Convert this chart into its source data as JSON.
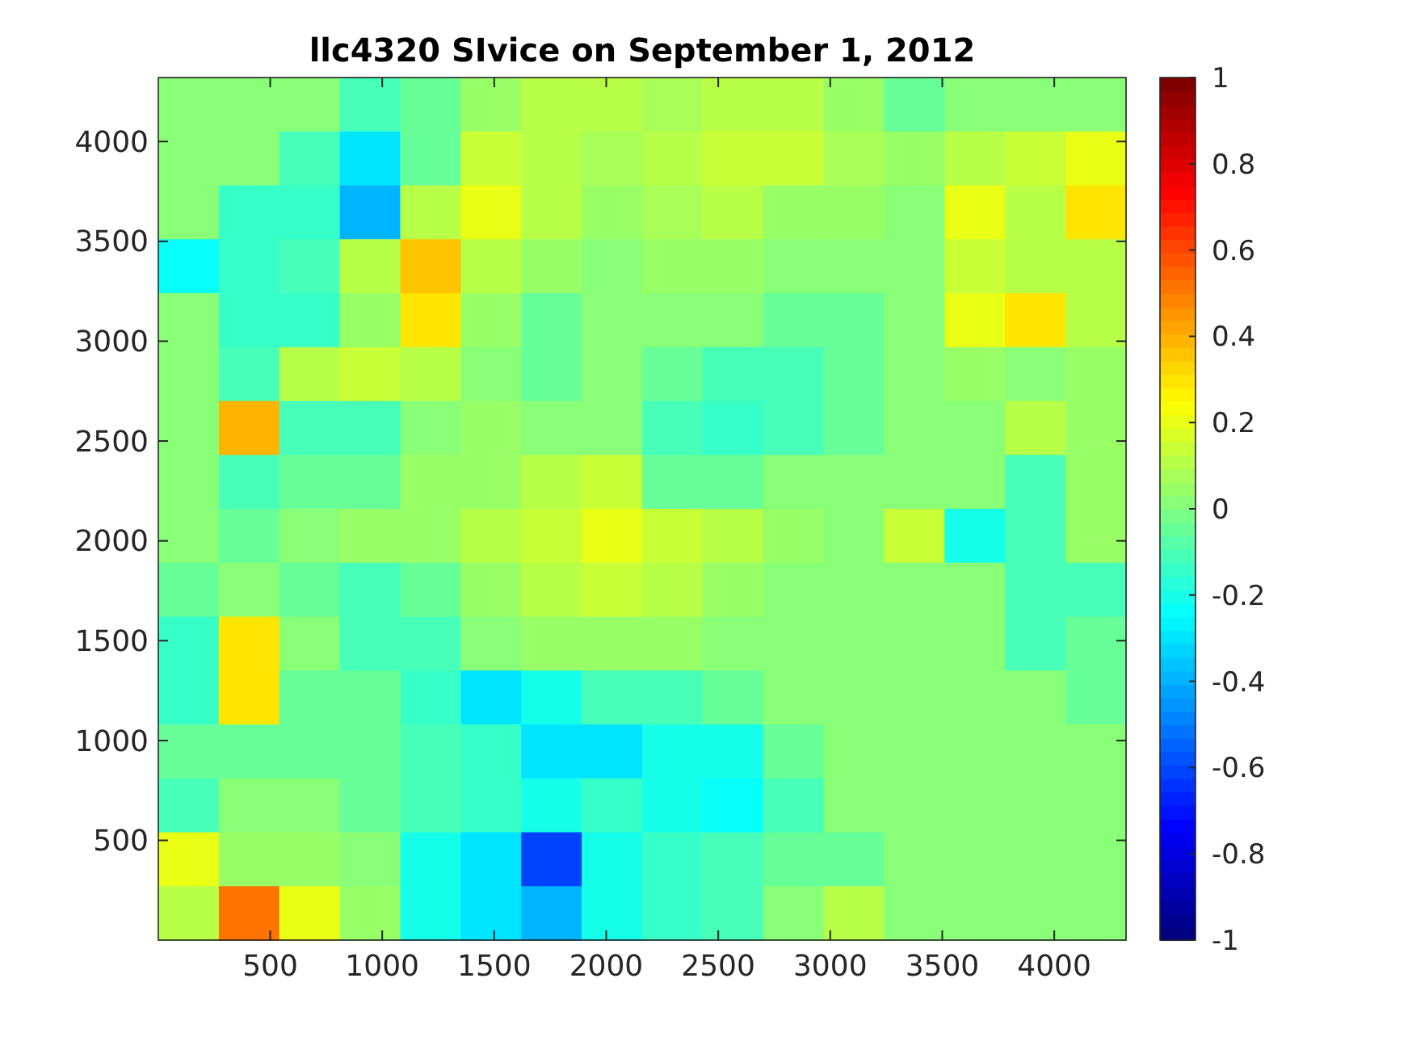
{
  "chart_data": {
    "type": "heatmap",
    "title": "llc4320 SIvice on September 1, 2012",
    "xlim": [
      0.5,
      4320.5
    ],
    "ylim": [
      0.5,
      4320.5
    ],
    "xticks": [
      500,
      1000,
      1500,
      2000,
      2500,
      3000,
      3500,
      4000
    ],
    "yticks": [
      500,
      1000,
      1500,
      2000,
      2500,
      3000,
      3500,
      4000
    ],
    "clim": [
      -1,
      1
    ],
    "cticks": [
      -1,
      -0.8,
      -0.6,
      -0.4,
      -0.2,
      0,
      0.2,
      0.4,
      0.6,
      0.8,
      1
    ],
    "cells": [
      [
        0,
        0,
        0,
        -0.1,
        -0.05,
        0.05,
        0.1,
        0.1,
        0.08,
        0.1,
        0.12,
        0.05,
        -0.05,
        0,
        0,
        0
      ],
      [
        0,
        0,
        -0.1,
        -0.3,
        -0.05,
        0.15,
        0.1,
        0.08,
        0.1,
        0.15,
        0.15,
        0.08,
        0.05,
        0.1,
        0.15,
        0.2
      ],
      [
        0,
        -0.15,
        -0.15,
        -0.4,
        0.1,
        0.2,
        0.1,
        0.05,
        0.08,
        0.1,
        0.05,
        0.05,
        0,
        0.2,
        0.1,
        0.3
      ],
      [
        -0.25,
        -0.15,
        -0.1,
        0.1,
        0.35,
        0.1,
        0.05,
        0,
        0.05,
        0.05,
        0,
        0,
        0,
        0.15,
        0.1,
        0.1
      ],
      [
        0,
        -0.15,
        -0.15,
        0.05,
        0.3,
        0.05,
        -0.05,
        0,
        0,
        0,
        -0.05,
        -0.05,
        0,
        0.2,
        0.3,
        0.1
      ],
      [
        0,
        -0.1,
        0.1,
        0.15,
        0.1,
        0,
        -0.05,
        0,
        -0.05,
        -0.1,
        -0.1,
        -0.05,
        0,
        0.05,
        0,
        0.05
      ],
      [
        0,
        0.4,
        -0.1,
        -0.1,
        0,
        0.05,
        0,
        0,
        -0.1,
        -0.15,
        -0.1,
        -0.05,
        0,
        0,
        0.1,
        0.05
      ],
      [
        0,
        -0.1,
        -0.05,
        -0.05,
        0.05,
        0.05,
        0.1,
        0.15,
        -0.05,
        -0.05,
        0,
        0,
        0,
        0,
        -0.1,
        0.05
      ],
      [
        0,
        -0.05,
        0,
        0.05,
        0.05,
        0.1,
        0.15,
        0.2,
        0.15,
        0.1,
        0.05,
        0,
        0.15,
        -0.2,
        -0.1,
        0.05
      ],
      [
        -0.05,
        0,
        -0.05,
        -0.1,
        -0.05,
        0.05,
        0.1,
        0.15,
        0.1,
        0.05,
        0,
        0,
        0,
        0,
        -0.1,
        -0.1
      ],
      [
        -0.15,
        0.3,
        0,
        -0.1,
        -0.1,
        0,
        0.05,
        0.05,
        0.05,
        0,
        0,
        0,
        0,
        0,
        -0.1,
        -0.05
      ],
      [
        -0.15,
        0.3,
        -0.05,
        -0.05,
        -0.15,
        -0.3,
        -0.2,
        -0.1,
        -0.1,
        -0.05,
        0,
        0,
        0,
        0,
        0,
        -0.05
      ],
      [
        -0.05,
        -0.05,
        -0.05,
        -0.05,
        -0.1,
        -0.15,
        -0.3,
        -0.3,
        -0.2,
        -0.2,
        -0.05,
        0,
        0,
        0,
        0,
        0
      ],
      [
        -0.1,
        0,
        0,
        -0.05,
        -0.1,
        -0.15,
        -0.2,
        -0.15,
        -0.2,
        -0.25,
        -0.1,
        0,
        0,
        0,
        0,
        0
      ],
      [
        0.2,
        0.05,
        0.05,
        0,
        -0.2,
        -0.3,
        -0.6,
        -0.2,
        -0.15,
        -0.1,
        -0.05,
        -0.05,
        0,
        0,
        0,
        0
      ],
      [
        0.1,
        0.5,
        0.2,
        0.05,
        -0.2,
        -0.3,
        -0.4,
        -0.2,
        -0.15,
        -0.1,
        0,
        0.1,
        0,
        0,
        0,
        0
      ]
    ]
  }
}
